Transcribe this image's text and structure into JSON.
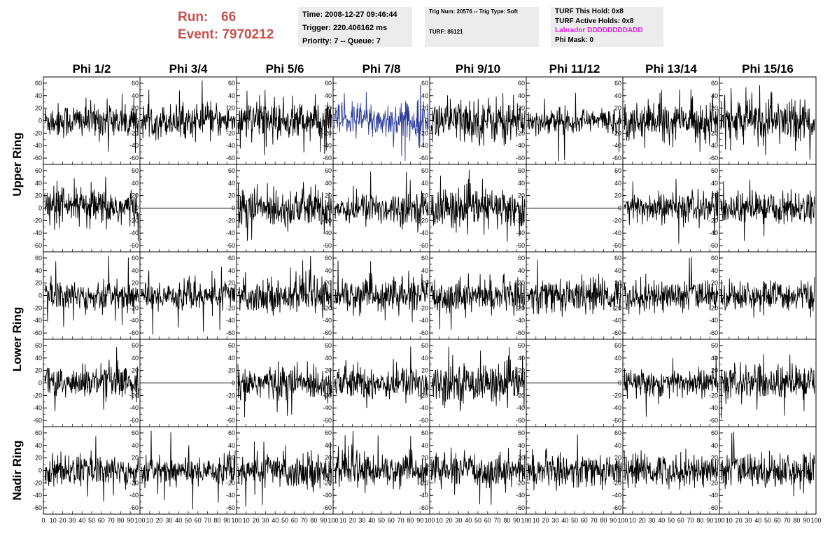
{
  "header": {
    "run_label": "Run:",
    "run_value": "66",
    "event_label": "Event:",
    "event_value": "7970212"
  },
  "info_time": {
    "time": "Time: 2008-12-27 09:46:44",
    "trigger": "Trigger: 220.406162 ms",
    "priority": "Priority: 7 -- Queue: 7"
  },
  "info_trig": {
    "trig": "Trig Num: 20576 -- Trig Type: Soft",
    "turf": "TURF: 86121"
  },
  "info_turf": {
    "this_hold": "TURF This Hold: 0x8",
    "active_holds": "TURF Active Holds: 0x8",
    "labrador": "Labrador DDDDDDDDADD",
    "phi_mask": "Phi Mask: 0"
  },
  "colors": {
    "trace": "#000000",
    "highlight_trace": "#2a3a9a",
    "run_text": "#c8504b",
    "labrador_text": "#e01ee0",
    "info_bg": "#ececec"
  },
  "chart_data": {
    "type": "line",
    "columns": [
      "Phi 1/2",
      "Phi 3/4",
      "Phi 5/6",
      "Phi 7/8",
      "Phi 9/10",
      "Phi 11/12",
      "Phi 13/14",
      "Phi 15/16"
    ],
    "rows": [
      "Upper Ring",
      "",
      "Lower Ring",
      "",
      "Nadir Ring"
    ],
    "row_labels": [
      {
        "label": "Upper Ring",
        "rows": [
          0,
          1
        ]
      },
      {
        "label": "Lower Ring",
        "rows": [
          2,
          3
        ]
      },
      {
        "label": "Nadir Ring",
        "rows": [
          4
        ]
      }
    ],
    "ylim": [
      -70,
      70
    ],
    "yticks": [
      -60,
      -40,
      -20,
      0,
      20,
      40,
      60
    ],
    "xlim": [
      0,
      100
    ],
    "xticks": [
      0,
      10,
      20,
      30,
      40,
      50,
      60,
      70,
      80,
      90,
      100
    ],
    "highlighted_panel": {
      "row": 0,
      "col": 3
    },
    "flat_panels": [
      [
        1,
        1
      ],
      [
        1,
        5
      ],
      [
        3,
        1
      ],
      [
        3,
        5
      ]
    ],
    "panel_amplitude": [
      [
        14,
        13,
        16,
        15,
        18,
        10,
        15,
        18
      ],
      [
        16,
        0,
        16,
        13,
        16,
        0,
        13,
        13
      ],
      [
        13,
        12,
        13,
        14,
        13,
        14,
        13,
        12
      ],
      [
        13,
        0,
        14,
        14,
        15,
        0,
        12,
        14
      ],
      [
        13,
        12,
        14,
        13,
        13,
        13,
        13,
        14
      ]
    ],
    "grid": false,
    "legend": "none"
  }
}
